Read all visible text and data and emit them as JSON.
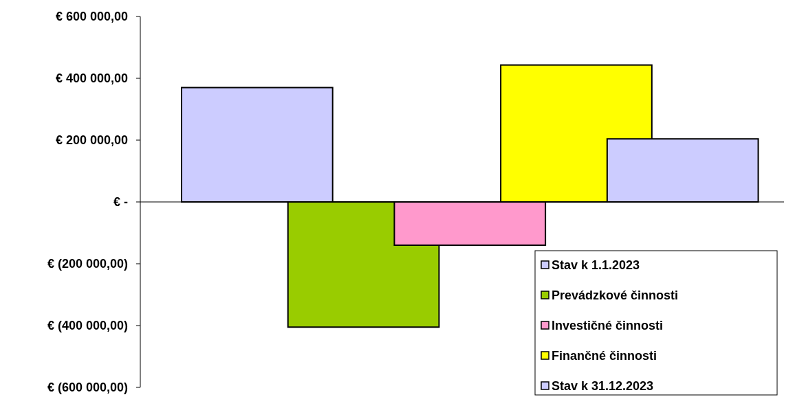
{
  "chart_data": {
    "type": "bar",
    "categories": [
      null
    ],
    "series": [
      {
        "name": "Stav k 1.1.2023",
        "color": "#ccccff",
        "values": [
          370000
        ]
      },
      {
        "name": "Prevádzkové činnosti",
        "color": "#99cc00",
        "values": [
          -405000
        ]
      },
      {
        "name": "Investičné činnosti",
        "color": "#ff99cc",
        "values": [
          -140000
        ]
      },
      {
        "name": "Finančné činnosti",
        "color": "#ffff00",
        "values": [
          443000
        ]
      },
      {
        "name": "Stav k 31.12.2023",
        "color": "#ccccff",
        "values": [
          204000
        ]
      }
    ],
    "ylim": [
      -600000,
      600000
    ],
    "yticks": [
      {
        "value": 600000,
        "label": "€ 600 000,00"
      },
      {
        "value": 400000,
        "label": "€ 400 000,00"
      },
      {
        "value": 200000,
        "label": "€ 200 000,00"
      },
      {
        "value": 0,
        "label": "€ -"
      },
      {
        "value": -200000,
        "label": "€ (200 000,00)"
      },
      {
        "value": -400000,
        "label": "€ (400 000,00)"
      },
      {
        "value": -600000,
        "label": "€ (600 000,00)"
      }
    ],
    "legend": "bottom right"
  }
}
